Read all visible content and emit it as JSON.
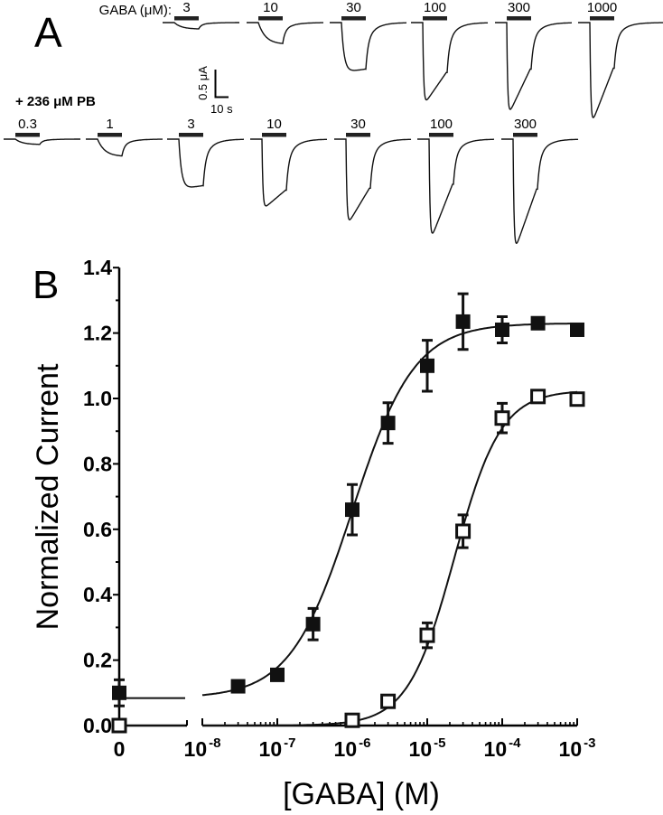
{
  "panel_a": {
    "letter": "A",
    "top_row_label": "GABA (μM):",
    "bottom_row_label": "+ 236 μM PB",
    "scale_bar": {
      "current_label": "0.5 μA",
      "time_label": "10 s",
      "current_uA": 0.5,
      "time_s": 10
    },
    "top_row": [
      {
        "conc": "3",
        "amplitude_uA": 0.12
      },
      {
        "conc": "10",
        "amplitude_uA": 0.4
      },
      {
        "conc": "30",
        "amplitude_uA": 0.92
      },
      {
        "conc": "100",
        "amplitude_uA": 1.5
      },
      {
        "conc": "300",
        "amplitude_uA": 1.7
      },
      {
        "conc": "1000",
        "amplitude_uA": 1.87
      }
    ],
    "bottom_row": [
      {
        "conc": "0.3",
        "amplitude_uA": 0.1
      },
      {
        "conc": "1",
        "amplitude_uA": 0.32
      },
      {
        "conc": "3",
        "amplitude_uA": 0.92
      },
      {
        "conc": "10",
        "amplitude_uA": 1.28
      },
      {
        "conc": "30",
        "amplitude_uA": 1.57
      },
      {
        "conc": "100",
        "amplitude_uA": 1.85
      },
      {
        "conc": "300",
        "amplitude_uA": 2.05
      }
    ]
  },
  "chart_data": {
    "type": "scatter",
    "panel_letter": "B",
    "xlabel": "[GABA] (M)",
    "ylabel": "Normalized Current",
    "x_scale": "log (with broken axis for 0)",
    "xlim": [
      1e-08,
      0.001
    ],
    "ylim": [
      0,
      1.4
    ],
    "y_ticks": [
      "0.0",
      "0.2",
      "0.4",
      "0.6",
      "0.8",
      "1.0",
      "1.2",
      "1.4"
    ],
    "x_tick_labels": [
      {
        "base": "0",
        "exp": ""
      },
      {
        "base": "10",
        "exp": "-8"
      },
      {
        "base": "10",
        "exp": "-7"
      },
      {
        "base": "10",
        "exp": "-6"
      },
      {
        "base": "10",
        "exp": "-5"
      },
      {
        "base": "10",
        "exp": "-4"
      },
      {
        "base": "10",
        "exp": "-3"
      }
    ],
    "grid": false,
    "series": [
      {
        "marker": "filled-square",
        "color": "#111111",
        "points": [
          {
            "x": 0,
            "y": 0.1,
            "err": 0.04
          },
          {
            "x": 3e-08,
            "y": 0.12,
            "err": 0
          },
          {
            "x": 1e-07,
            "y": 0.155,
            "err": 0
          },
          {
            "x": 3e-07,
            "y": 0.31,
            "err": 0.048
          },
          {
            "x": 1e-06,
            "y": 0.66,
            "err": 0.077
          },
          {
            "x": 3e-06,
            "y": 0.925,
            "err": 0.062
          },
          {
            "x": 1e-05,
            "y": 1.1,
            "err": 0.078
          },
          {
            "x": 3e-05,
            "y": 1.235,
            "err": 0.085
          },
          {
            "x": 0.0001,
            "y": 1.21,
            "err": 0.04
          },
          {
            "x": 0.0003,
            "y": 1.23,
            "err": 0.015
          },
          {
            "x": 0.001,
            "y": 1.21,
            "err": 0
          }
        ],
        "fit": {
          "bottom": 0.084,
          "top": 1.23,
          "ec50": 1e-06,
          "hill": 1.05
        }
      },
      {
        "marker": "open-square",
        "color": "#111111",
        "points": [
          {
            "x": 0,
            "y": 0.0,
            "err": 0
          },
          {
            "x": 1e-06,
            "y": 0.016,
            "err": 0
          },
          {
            "x": 3e-06,
            "y": 0.074,
            "err": 0
          },
          {
            "x": 1e-05,
            "y": 0.276,
            "err": 0.038
          },
          {
            "x": 3e-05,
            "y": 0.594,
            "err": 0.05
          },
          {
            "x": 0.0001,
            "y": 0.94,
            "err": 0.045
          },
          {
            "x": 0.0003,
            "y": 1.006,
            "err": 0
          },
          {
            "x": 0.001,
            "y": 0.998,
            "err": 0
          }
        ],
        "fit": {
          "bottom": 0.0,
          "top": 1.025,
          "ec50": 2.3e-05,
          "hill": 1.4
        }
      }
    ]
  }
}
